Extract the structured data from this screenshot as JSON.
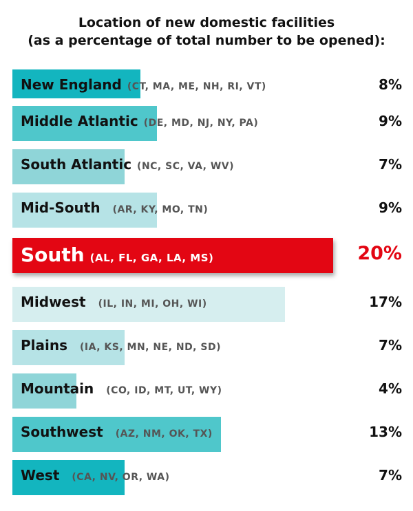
{
  "title": {
    "line1": "Location of new domestic facilities",
    "line2": "(as a percentage of total number to be opened):"
  },
  "chart_data": {
    "type": "bar",
    "orientation": "horizontal",
    "title": "Location of new domestic facilities (as a percentage of total number to be opened):",
    "categories": [
      "New England",
      "Middle Atlantic",
      "South Atlantic",
      "Mid-South",
      "South",
      "Midwest",
      "Plains",
      "Mountain",
      "Southwest",
      "West"
    ],
    "values": [
      8,
      9,
      7,
      9,
      20,
      17,
      7,
      4,
      13,
      7
    ],
    "xlim": [
      0,
      20
    ],
    "grid": false,
    "legend": "none",
    "rows": [
      {
        "region": "New England",
        "states": "(CT, MA, ME, NH, RI, VT)",
        "label": "8%",
        "value": 8,
        "color": "#13b5bf"
      },
      {
        "region": "Middle Atlantic",
        "states": "(DE, MD, NJ, NY, PA)",
        "label": "9%",
        "value": 9,
        "color": "#4fc7cb"
      },
      {
        "region": "South Atlantic",
        "states": "(NC, SC, VA, WV)",
        "label": "7%",
        "value": 7,
        "color": "#8fd5d8"
      },
      {
        "region": "Mid-South",
        "states": "(AR, KY, MO, TN)",
        "label": "9%",
        "value": 9,
        "color": "#b6e3e6"
      },
      {
        "region": "South",
        "states": "(AL, FL, GA, LA, MS)",
        "label": "20%",
        "value": 20,
        "color": "#e30613",
        "highlight": true
      },
      {
        "region": "Midwest",
        "states": "(IL, IN, MI, OH, WI)",
        "label": "17%",
        "value": 17,
        "color": "#d6eeef"
      },
      {
        "region": "Plains",
        "states": "(IA, KS, MN, NE, ND, SD)",
        "label": "7%",
        "value": 7,
        "color": "#b6e3e6"
      },
      {
        "region": "Mountain",
        "states": "(CO, ID, MT, UT, WY)",
        "label": "4%",
        "value": 4,
        "color": "#8fd5d8"
      },
      {
        "region": "Southwest",
        "states": "(AZ, NM, OK, TX)",
        "label": "13%",
        "value": 13,
        "color": "#4fc7cb"
      },
      {
        "region": "West",
        "states": "(CA, NV, OR, WA)",
        "label": "7%",
        "value": 7,
        "color": "#13b5bf"
      }
    ]
  }
}
